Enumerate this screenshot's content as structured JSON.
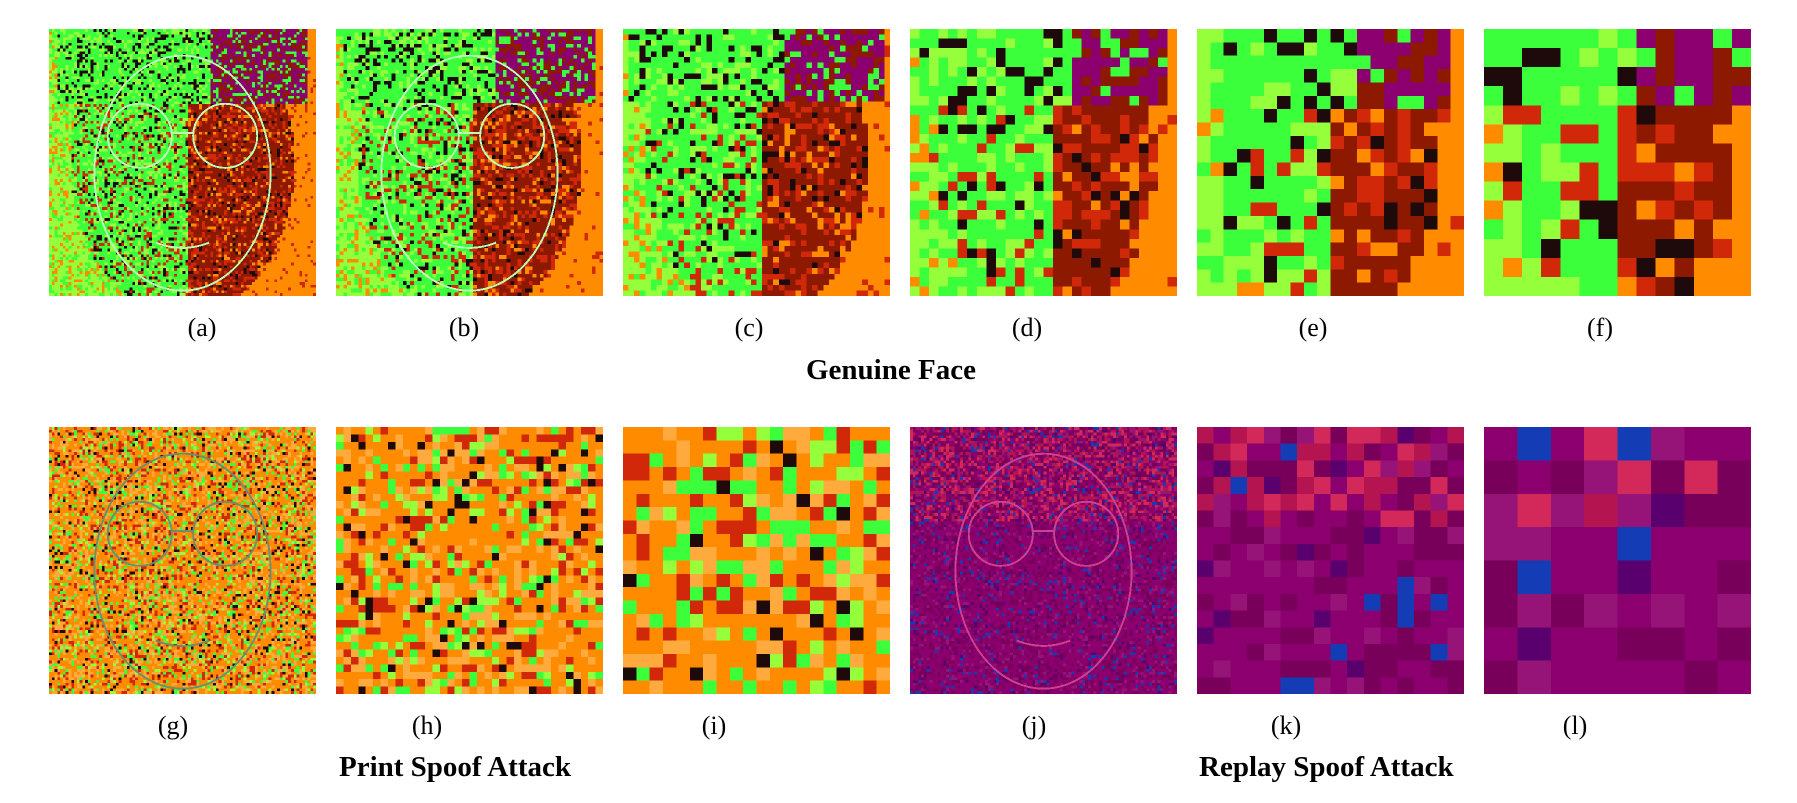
{
  "panels": [
    {
      "label": "(a)",
      "style": "genuine",
      "grid": 96,
      "mosaic": false
    },
    {
      "label": "(b)",
      "style": "genuine",
      "grid": 72,
      "mosaic": false
    },
    {
      "label": "(c)",
      "style": "genuine",
      "grid": 48,
      "mosaic": true
    },
    {
      "label": "(d)",
      "style": "genuine",
      "grid": 28,
      "mosaic": true
    },
    {
      "label": "(e)",
      "style": "genuine",
      "grid": 20,
      "mosaic": true
    },
    {
      "label": "(f)",
      "style": "genuine",
      "grid": 14,
      "mosaic": true
    },
    {
      "label": "(g)",
      "style": "print",
      "grid": 96,
      "mosaic": false
    },
    {
      "label": "(h)",
      "style": "print",
      "grid": 36,
      "mosaic": true
    },
    {
      "label": "(i)",
      "style": "print",
      "grid": 20,
      "mosaic": true
    },
    {
      "label": "(j)",
      "style": "replay",
      "grid": 96,
      "mosaic": false
    },
    {
      "label": "(k)",
      "style": "replay",
      "grid": 16,
      "mosaic": true
    },
    {
      "label": "(l)",
      "style": "replay",
      "grid": 8,
      "mosaic": true
    }
  ],
  "group_titles": {
    "genuine": "Genuine Face",
    "print": "Print Spoof Attack",
    "replay": "Replay Spoof Attack"
  },
  "colors": {
    "background_orange": "#ff8c00",
    "green": "#3cff3c",
    "dark_red": "#8b1a00",
    "magenta": "#8b006e",
    "pink": "#d02060"
  }
}
